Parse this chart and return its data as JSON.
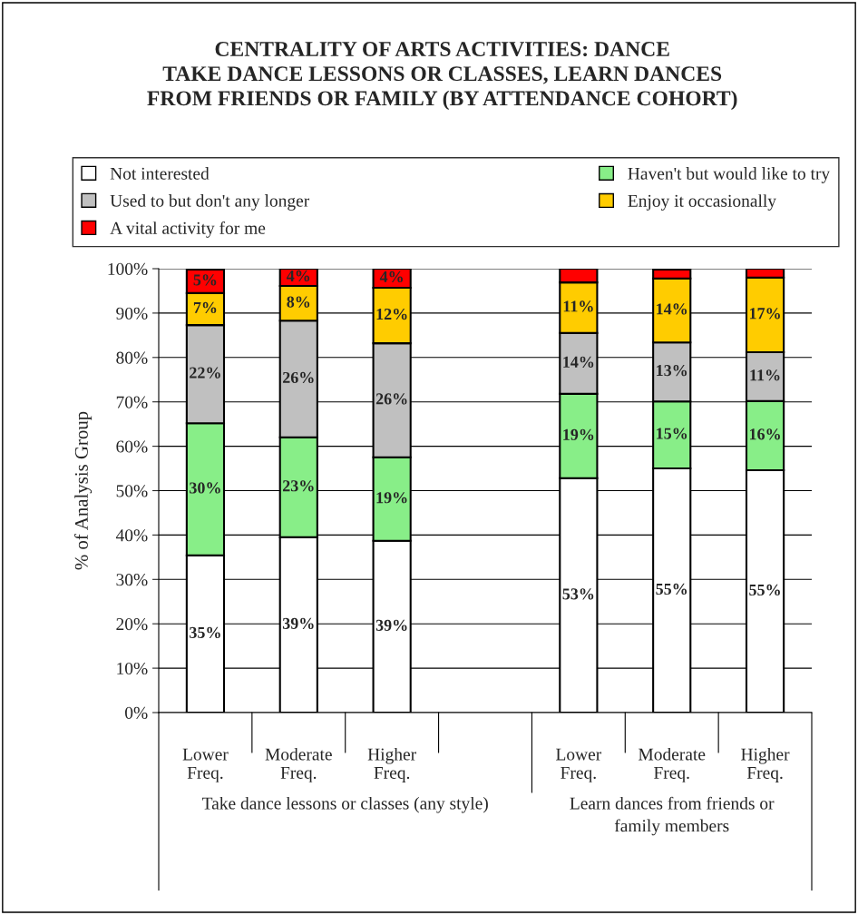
{
  "chart_data": {
    "type": "bar",
    "stacked": true,
    "title": "CENTRALITY OF ARTS ACTIVITIES: DANCE\nTAKE DANCE LESSONS OR CLASSES, LEARN DANCES\nFROM FRIENDS OR FAMILY (BY ATTENDANCE COHORT)",
    "ylabel": "% of Analysis Group",
    "categories": [
      "Lower\nFreq.",
      "Moderate\nFreq.",
      "Higher\nFreq.",
      null,
      "Lower\nFreq.",
      "Moderate\nFreq.",
      "Higher\nFreq."
    ],
    "series": [
      {
        "name": "Not interested",
        "color": "#ffffff",
        "values": [
          35.4,
          39.5,
          38.7,
          null,
          52.8,
          55.0,
          54.6
        ],
        "value_labels": [
          "35%",
          "39%",
          "39%",
          null,
          "53%",
          "55%",
          "55%"
        ]
      },
      {
        "name": "Haven't but would like to try",
        "color": "#88ee88",
        "values": [
          29.8,
          22.5,
          18.8,
          null,
          19.0,
          15.1,
          15.6
        ],
        "value_labels": [
          "30%",
          "23%",
          "19%",
          null,
          "19%",
          "15%",
          "16%"
        ]
      },
      {
        "name": "Used to but don't any longer",
        "color": "#c0c0c0",
        "values": [
          22.1,
          26.3,
          25.7,
          null,
          13.7,
          13.3,
          11.0
        ],
        "value_labels": [
          "22%",
          "26%",
          "26%",
          null,
          "14%",
          "13%",
          "11%"
        ]
      },
      {
        "name": "Enjoy it occasionally",
        "color": "#ffcc00",
        "values": [
          7.2,
          7.8,
          12.5,
          null,
          11.4,
          14.4,
          16.8
        ],
        "value_labels": [
          "7%",
          "8%",
          "12%",
          null,
          "11%",
          "14%",
          "17%"
        ]
      },
      {
        "name": "A vital activity for me",
        "color": "#ff0000",
        "values": [
          5.3,
          3.9,
          4.3,
          null,
          3.1,
          2.0,
          2.0
        ],
        "value_labels": [
          "5%",
          "4%",
          "4%",
          null,
          null,
          null,
          null
        ]
      }
    ],
    "ylim": [
      0,
      100
    ],
    "yticks": [
      {
        "value": 0,
        "label": "0%"
      },
      {
        "value": 10,
        "label": "10%"
      },
      {
        "value": 20,
        "label": "20%"
      },
      {
        "value": 30,
        "label": "30%"
      },
      {
        "value": 40,
        "label": "40%"
      },
      {
        "value": 50,
        "label": "50%"
      },
      {
        "value": 60,
        "label": "60%"
      },
      {
        "value": 70,
        "label": "70%"
      },
      {
        "value": 80,
        "label": "80%"
      },
      {
        "value": 90,
        "label": "90%"
      },
      {
        "value": 100,
        "label": "100%"
      }
    ],
    "grid": "y",
    "legend": "top",
    "annotations": [
      "Take dance lessons or classes (any style)",
      "Learn dances from friends or\nfamily members"
    ]
  }
}
